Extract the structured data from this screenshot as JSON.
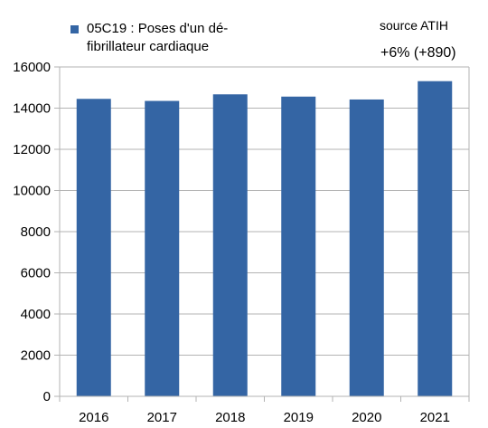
{
  "chart_data": {
    "type": "bar",
    "categories": [
      "2016",
      "2017",
      "2018",
      "2019",
      "2020",
      "2021"
    ],
    "series": [
      {
        "name": "05C19 : Poses d'un dé-fibrillateur cardiaque",
        "values": [
          14450,
          14350,
          14670,
          14560,
          14420,
          15310
        ],
        "color": "#3465a4"
      }
    ],
    "ylim": [
      0,
      16000
    ],
    "yticks": [
      0,
      2000,
      4000,
      6000,
      8000,
      10000,
      12000,
      14000,
      16000
    ],
    "grid": true,
    "legend_position": "top-left",
    "legend_lines": [
      "05C19 : Poses d'un dé-",
      "fibrillateur cardiaque"
    ],
    "annotations": {
      "source": "source ATIH",
      "change": "+6% (+890)"
    }
  }
}
